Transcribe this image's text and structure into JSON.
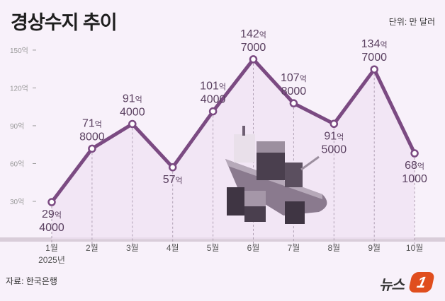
{
  "header": {
    "title": "경상수지 추이",
    "unit": "단위: 만 달러"
  },
  "footer": {
    "source": "자료: 한국은행",
    "logo_text": "뉴스",
    "logo_mark": "1"
  },
  "colors": {
    "line": "#7b4a82",
    "background": "#f8f1fa",
    "logo": "#e04e1e"
  },
  "chart_data": {
    "type": "line",
    "title": "경상수지 추이",
    "unit": "단위: 만 달러",
    "xlabel": "",
    "ylabel": "",
    "categories": [
      "1월",
      "2월",
      "3월",
      "4월",
      "5월",
      "6월",
      "7월",
      "8월",
      "9월",
      "10월"
    ],
    "year_label": "2025년",
    "yticks": [
      "30억",
      "60억",
      "90억",
      "120억",
      "150억"
    ],
    "ylim": [
      0,
      150
    ],
    "series": [
      {
        "name": "경상수지",
        "values": [
          29.4,
          71.8,
          91.4,
          57.0,
          101.4,
          142.7,
          107.8,
          91.5,
          134.7,
          68.1
        ],
        "labels": [
          [
            "29억",
            "4000"
          ],
          [
            "71억",
            "8000"
          ],
          [
            "91억",
            "4000"
          ],
          [
            "57억",
            ""
          ],
          [
            "101억",
            "4000"
          ],
          [
            "142억",
            "7000"
          ],
          [
            "107억",
            "8000"
          ],
          [
            "91억",
            "5000"
          ],
          [
            "134억",
            "7000"
          ],
          [
            "68억",
            "1000"
          ]
        ]
      }
    ],
    "grid": "vertical dashed",
    "legend": "none"
  }
}
